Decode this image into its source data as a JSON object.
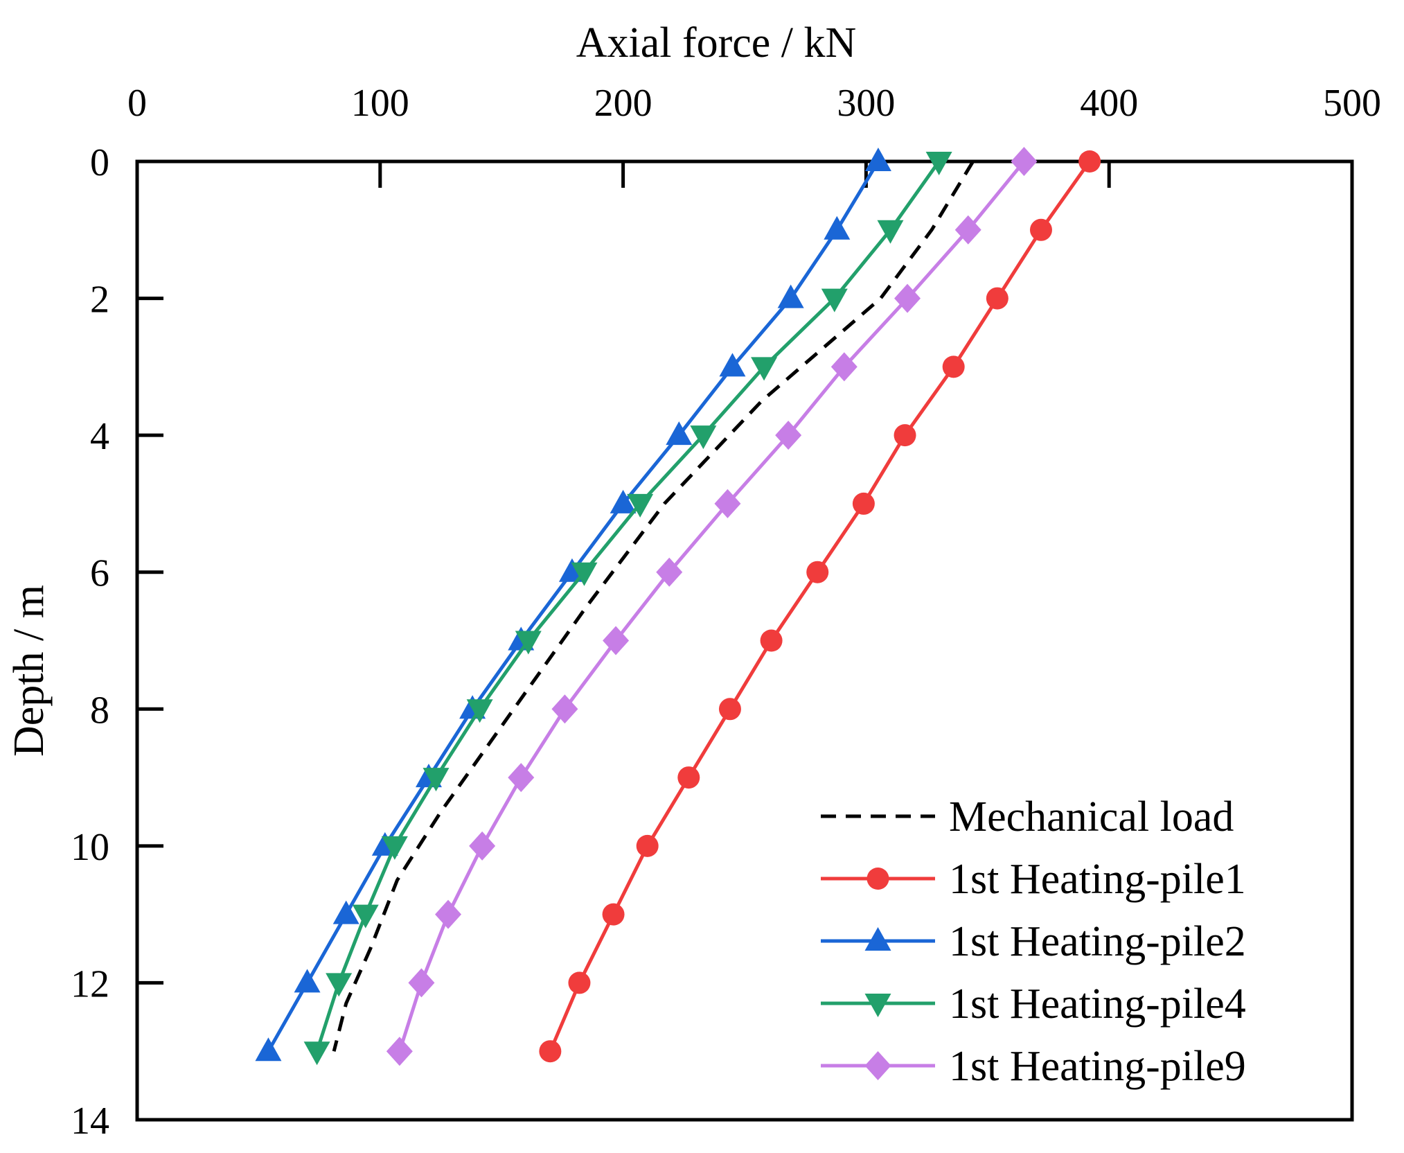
{
  "chart_data": {
    "type": "line",
    "title": "",
    "xlabel": "Axial force / kN",
    "ylabel": "Depth / m",
    "xlim": [
      0,
      500
    ],
    "ylim": [
      0,
      14
    ],
    "x_axis_position": "top",
    "y_axis_inverted": true,
    "xticks": [
      0,
      100,
      200,
      300,
      400,
      500
    ],
    "yticks": [
      0,
      2,
      4,
      6,
      8,
      10,
      12,
      14
    ],
    "legend_position": "bottom-right",
    "series": [
      {
        "name": "Mechanical load",
        "color": "#000000",
        "style": "dashed",
        "marker": "none",
        "points": [
          [
            344,
            0
          ],
          [
            327,
            1
          ],
          [
            306,
            2
          ],
          [
            257,
            3.5
          ],
          [
            217,
            5
          ],
          [
            185,
            6.5
          ],
          [
            155,
            8
          ],
          [
            125,
            9.5
          ],
          [
            107,
            10.5
          ],
          [
            96,
            11.5
          ],
          [
            86,
            12.3
          ],
          [
            81,
            13
          ]
        ]
      },
      {
        "name": "1st Heating-pile1",
        "color": "#f03c3c",
        "style": "solid",
        "marker": "circle",
        "points": [
          [
            392,
            0
          ],
          [
            372,
            1
          ],
          [
            354,
            2
          ],
          [
            336,
            3
          ],
          [
            316,
            4
          ],
          [
            299,
            5
          ],
          [
            280,
            6
          ],
          [
            261,
            7
          ],
          [
            244,
            8
          ],
          [
            227,
            9
          ],
          [
            210,
            10
          ],
          [
            196,
            11
          ],
          [
            182,
            12
          ],
          [
            170,
            13
          ]
        ]
      },
      {
        "name": "1st Heating-pile2",
        "color": "#1a66d6",
        "style": "solid",
        "marker": "triangle-up",
        "points": [
          [
            305,
            0
          ],
          [
            288,
            1
          ],
          [
            269,
            2
          ],
          [
            245,
            3
          ],
          [
            223,
            4
          ],
          [
            200,
            5
          ],
          [
            179,
            6
          ],
          [
            158,
            7
          ],
          [
            138,
            8
          ],
          [
            120,
            9
          ],
          [
            102,
            10
          ],
          [
            86,
            11
          ],
          [
            70,
            12
          ],
          [
            54,
            13
          ]
        ]
      },
      {
        "name": "1st Heating-pile4",
        "color": "#22a06b",
        "style": "solid",
        "marker": "triangle-down",
        "points": [
          [
            330,
            0
          ],
          [
            310,
            1
          ],
          [
            287,
            2
          ],
          [
            258,
            3
          ],
          [
            233,
            4
          ],
          [
            207,
            5
          ],
          [
            184,
            6
          ],
          [
            161,
            7
          ],
          [
            141,
            8
          ],
          [
            123,
            9
          ],
          [
            106,
            10
          ],
          [
            94,
            11
          ],
          [
            83,
            12
          ],
          [
            74,
            13
          ]
        ]
      },
      {
        "name": "1st Heating-pile9",
        "color": "#c77ee6",
        "style": "solid",
        "marker": "diamond",
        "points": [
          [
            365,
            0
          ],
          [
            342,
            1
          ],
          [
            317,
            2
          ],
          [
            291,
            3
          ],
          [
            268,
            4
          ],
          [
            243,
            5
          ],
          [
            219,
            6
          ],
          [
            197,
            7
          ],
          [
            176,
            8
          ],
          [
            158,
            9
          ],
          [
            142,
            10
          ],
          [
            128,
            11
          ],
          [
            117,
            12
          ],
          [
            108,
            13
          ]
        ]
      }
    ]
  }
}
